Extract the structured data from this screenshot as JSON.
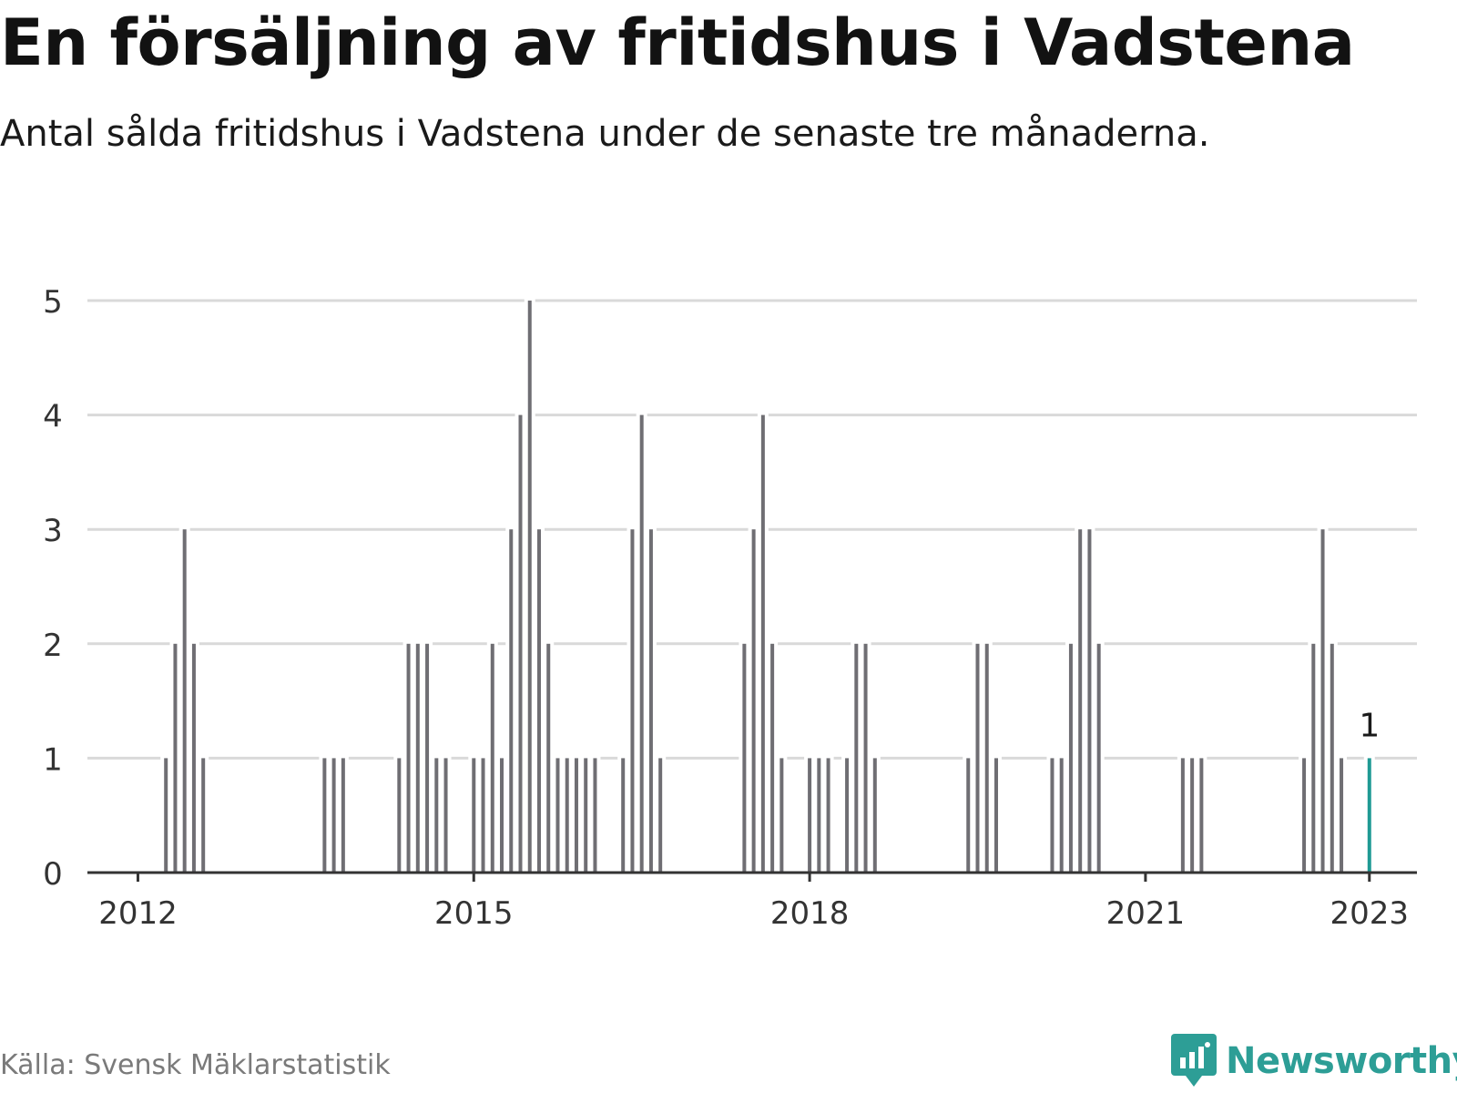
{
  "title": "En försäljning av fritidshus i Vadstena",
  "subtitle": "Antal sålda fritidshus i Vadstena under de senaste tre månaderna.",
  "source": "Källa: Svensk Mäklarstatistik",
  "brand": {
    "name": "Newsworthy",
    "icon": "newsworthy-logo-icon",
    "color": "#2d9e96"
  },
  "colors": {
    "bar": "#6f6e73",
    "highlight": "#1f9a94",
    "grid": "#d9d9d9",
    "axis": "#333333"
  },
  "chart_data": {
    "type": "bar",
    "x_tick_labels": [
      "2012",
      "2015",
      "2018",
      "2021",
      "2023"
    ],
    "y_tick_labels": [
      "0",
      "1",
      "2",
      "3",
      "4",
      "5"
    ],
    "ylim": [
      0,
      5
    ],
    "xlim": [
      "2011-07",
      "2023-06"
    ],
    "grid": true,
    "highlight": {
      "date": "2023-01",
      "value": 1,
      "label": "1"
    },
    "series": [
      {
        "dates": [
          "2012-04",
          "2012-05",
          "2012-06",
          "2012-07",
          "2012-08",
          "2013-09",
          "2013-10",
          "2013-11",
          "2014-05",
          "2014-06",
          "2014-07",
          "2014-08",
          "2014-09",
          "2014-10",
          "2015-01",
          "2015-02",
          "2015-03",
          "2015-04",
          "2015-05",
          "2015-06",
          "2015-07",
          "2015-08",
          "2015-09",
          "2015-10",
          "2015-11",
          "2015-12",
          "2016-01",
          "2016-02",
          "2016-05",
          "2016-06",
          "2016-07",
          "2016-08",
          "2016-09",
          "2017-06",
          "2017-07",
          "2017-08",
          "2017-09",
          "2017-10",
          "2018-01",
          "2018-02",
          "2018-03",
          "2018-05",
          "2018-06",
          "2018-07",
          "2018-08",
          "2019-06",
          "2019-07",
          "2019-08",
          "2019-09",
          "2020-03",
          "2020-04",
          "2020-05",
          "2020-06",
          "2020-07",
          "2020-08",
          "2021-05",
          "2021-06",
          "2021-07",
          "2022-06",
          "2022-07",
          "2022-08",
          "2022-09",
          "2022-10",
          "2023-01"
        ],
        "values": [
          1,
          2,
          3,
          2,
          1,
          1,
          1,
          1,
          1,
          2,
          2,
          2,
          1,
          1,
          1,
          1,
          2,
          1,
          3,
          4,
          5,
          3,
          2,
          1,
          1,
          1,
          1,
          1,
          1,
          3,
          4,
          3,
          1,
          2,
          3,
          4,
          2,
          1,
          1,
          1,
          1,
          1,
          2,
          2,
          1,
          1,
          2,
          2,
          1,
          1,
          1,
          2,
          3,
          3,
          2,
          1,
          1,
          1,
          1,
          2,
          3,
          2,
          1,
          1
        ]
      }
    ]
  }
}
